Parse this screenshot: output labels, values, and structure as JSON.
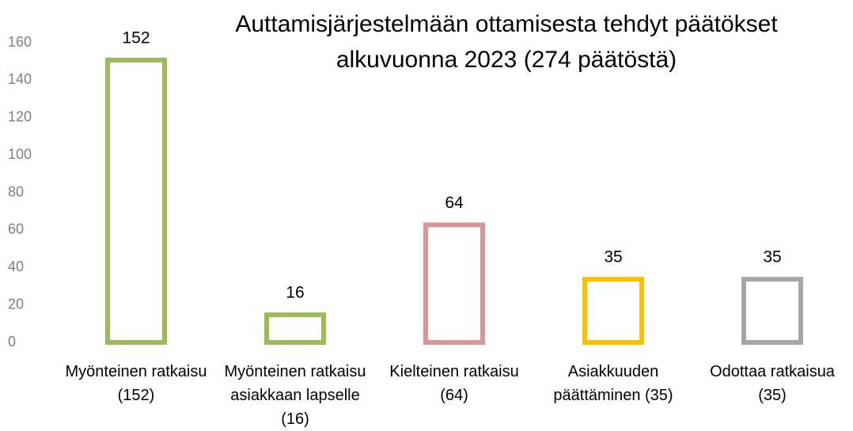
{
  "chart_data": {
    "type": "bar",
    "title": "Auttamisjärjestelmään ottamisesta tehdyt päätökset alkuvuonna 2023 (274 päätöstä)",
    "categories": [
      "Myönteinen ratkaisu (152)",
      "Myönteinen ratkaisu asiakkaan lapselle (16)",
      "Kielteinen ratkaisu (64)",
      "Asiakkuuden päättäminen (35)",
      "Odottaa ratkaisua (35)"
    ],
    "values": [
      152,
      16,
      64,
      35,
      35
    ],
    "colors": [
      "#9bbb59",
      "#9bbb59",
      "#d99694",
      "#ffc000",
      "#a6a6a6"
    ],
    "ylim": [
      0,
      160
    ],
    "yticks": [
      0,
      20,
      40,
      60,
      80,
      100,
      120,
      140,
      160
    ],
    "grid": false
  }
}
